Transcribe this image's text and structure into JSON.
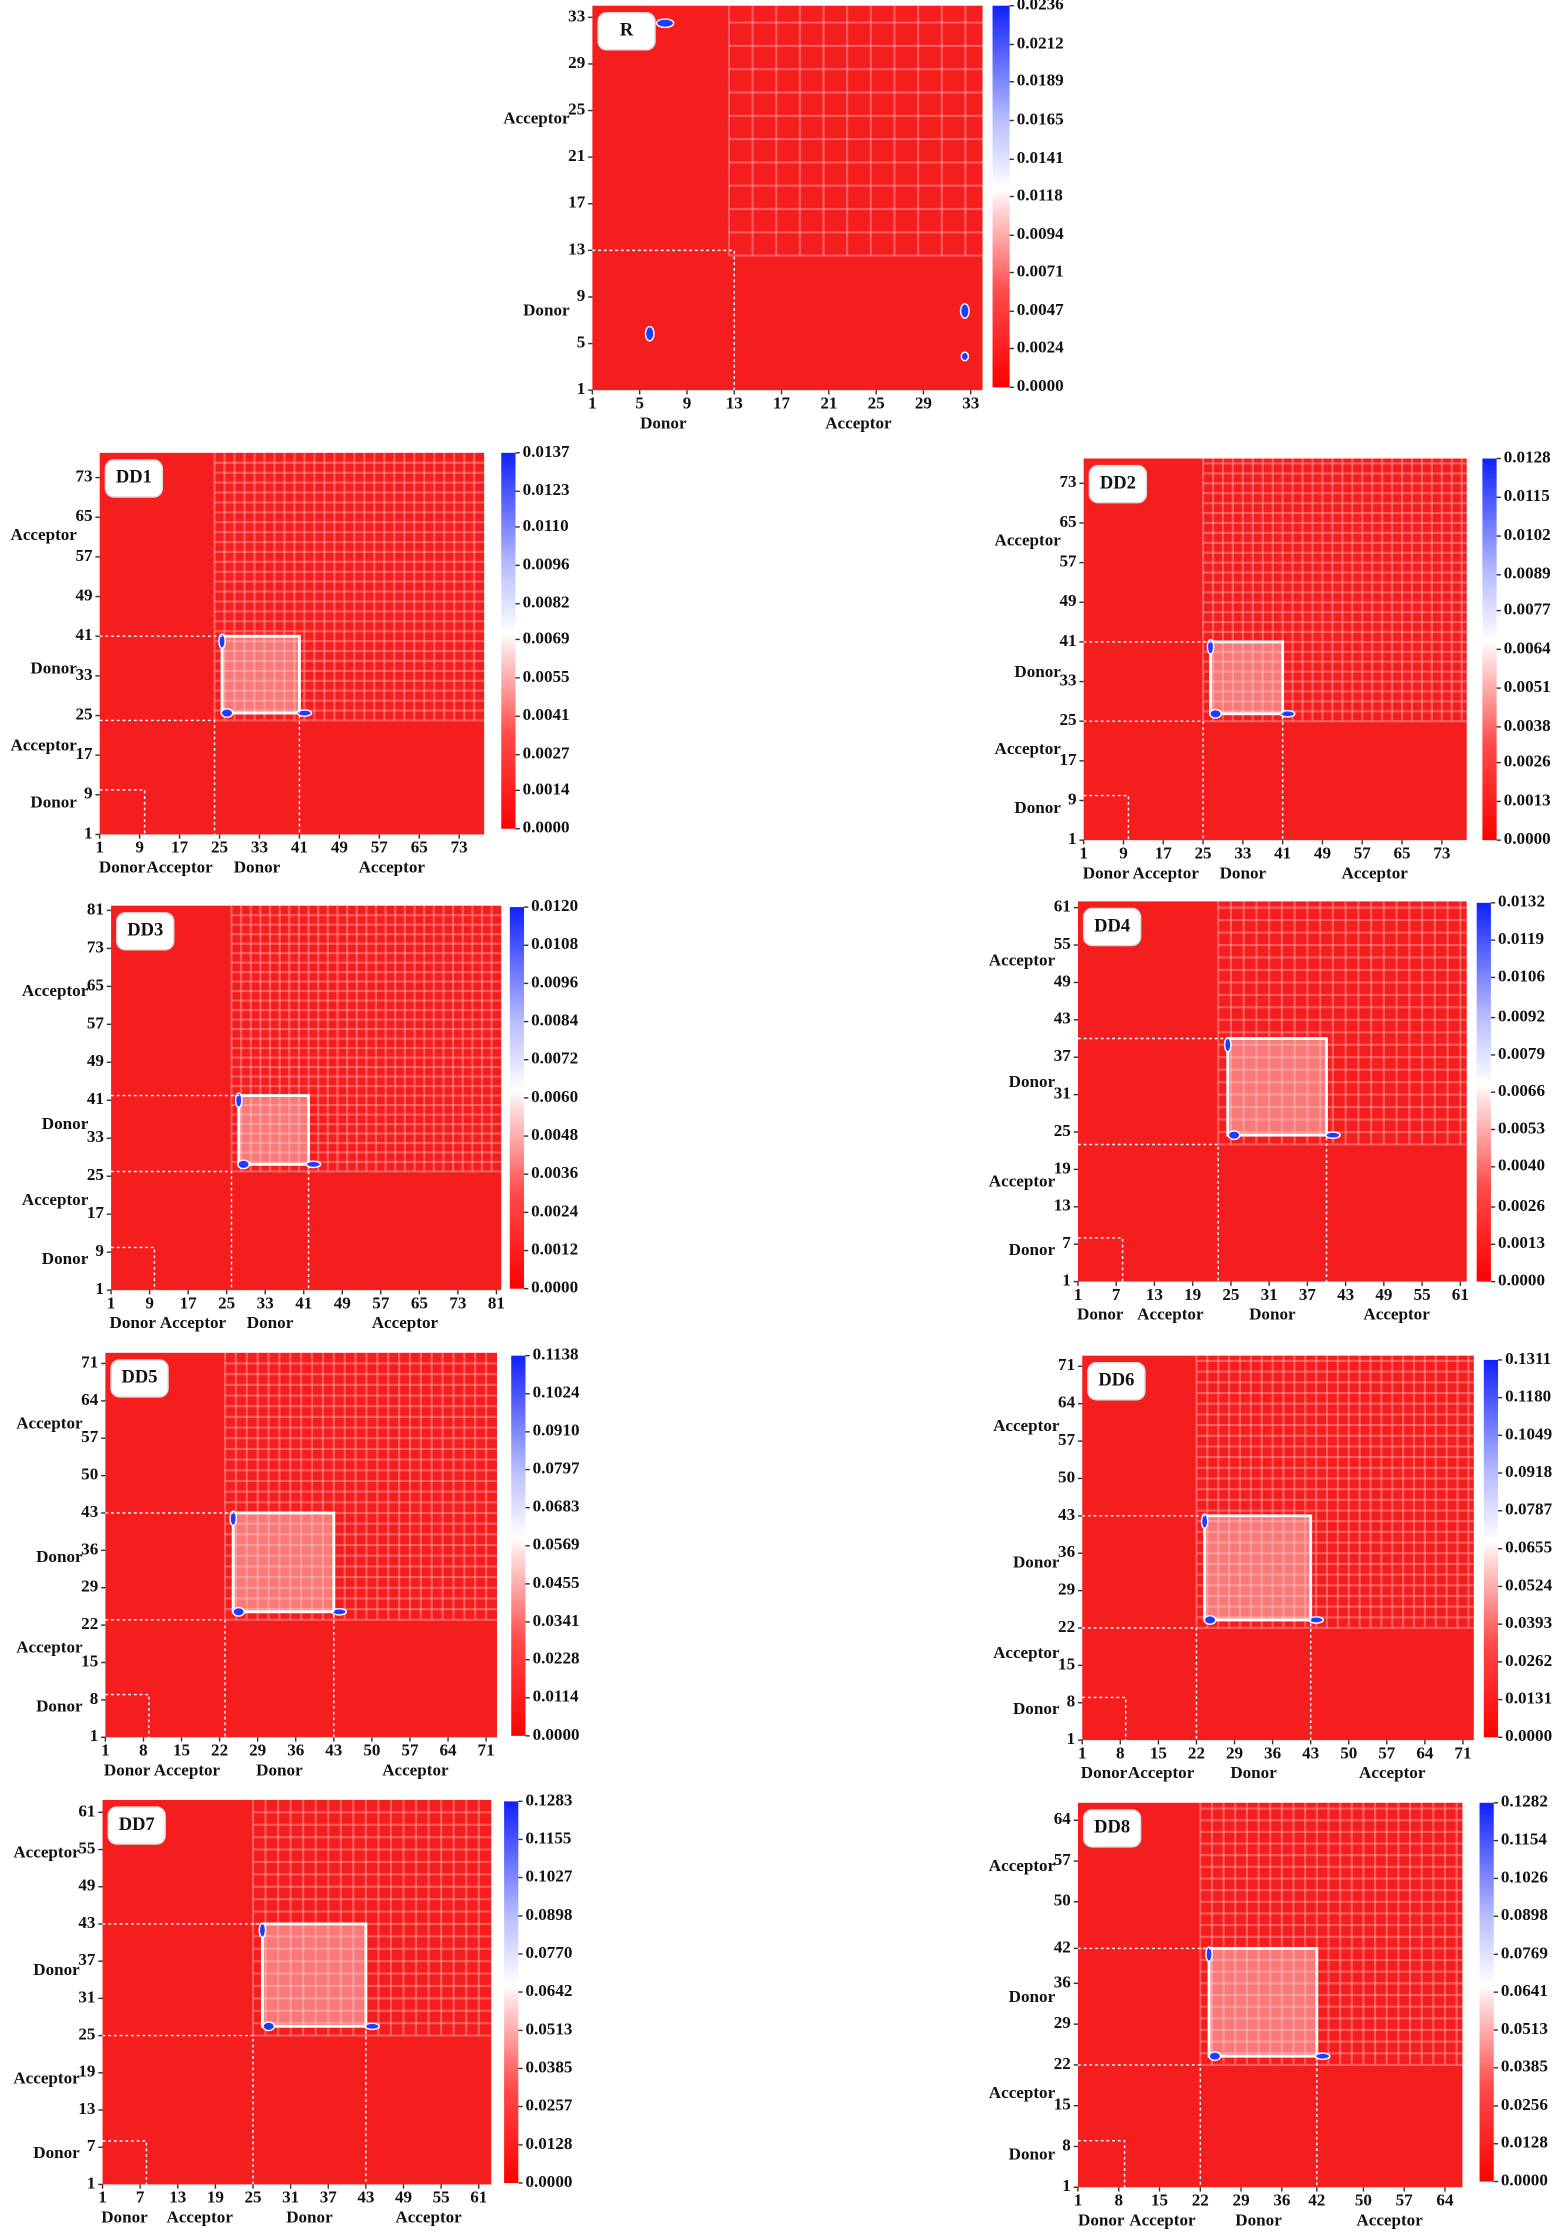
{
  "chart_data": [
    {
      "type": "heatmap",
      "title": "R",
      "xlim": [
        1,
        34
      ],
      "ylim": [
        1,
        34
      ],
      "xticks": [
        1,
        5,
        9,
        13,
        17,
        21,
        25,
        29,
        33
      ],
      "yticks": [
        1,
        5,
        9,
        13,
        17,
        21,
        25,
        29,
        33
      ],
      "regions": [
        {
          "label": "Donor",
          "end": 13
        },
        {
          "label": "Acceptor",
          "end": 34
        }
      ],
      "clim": [
        0,
        0.0236
      ],
      "cticks": [
        0.0236,
        0.0212,
        0.0189,
        0.0165,
        0.0141,
        0.0118,
        0.0094,
        0.0071,
        0.0047,
        0.0024,
        {
          "value": 0,
          "label": "0.0000"
        }
      ]
    },
    {
      "type": "heatmap",
      "title": "DD1",
      "xlim": [
        1,
        78
      ],
      "ylim": [
        1,
        78
      ],
      "xticks": [
        1,
        9,
        17,
        25,
        33,
        41,
        49,
        57,
        65,
        73
      ],
      "yticks": [
        1,
        9,
        17,
        25,
        33,
        41,
        49,
        57,
        65,
        73
      ],
      "regions": [
        {
          "label": "Donor",
          "end": 10
        },
        {
          "label": "Acceptor",
          "end": 24
        },
        {
          "label": "Donor",
          "end": 41
        },
        {
          "label": "Acceptor",
          "end": 78
        }
      ],
      "clim": [
        0,
        0.0137
      ],
      "cticks": [
        0.0137,
        0.0123,
        {
          "value": 0.011,
          "label": "0.0110"
        },
        0.0096,
        0.0082,
        0.0069,
        0.0055,
        0.0041,
        0.0027,
        0.0014,
        {
          "value": 0,
          "label": "0.0000"
        }
      ]
    },
    {
      "type": "heatmap",
      "title": "DD2",
      "xlim": [
        1,
        78
      ],
      "ylim": [
        1,
        78
      ],
      "xticks": [
        1,
        9,
        17,
        25,
        33,
        41,
        49,
        57,
        65,
        73
      ],
      "yticks": [
        1,
        9,
        17,
        25,
        33,
        41,
        49,
        57,
        65,
        73
      ],
      "regions": [
        {
          "label": "Donor",
          "end": 10
        },
        {
          "label": "Acceptor",
          "end": 25
        },
        {
          "label": "Donor",
          "end": 41
        },
        {
          "label": "Acceptor",
          "end": 78
        }
      ],
      "clim": [
        0,
        0.0128
      ],
      "cticks": [
        0.0128,
        0.0115,
        0.0102,
        0.0089,
        0.0077,
        0.0064,
        0.0051,
        0.0038,
        0.0026,
        0.0013,
        {
          "value": 0,
          "label": "0.0000"
        }
      ]
    },
    {
      "type": "heatmap",
      "title": "DD3",
      "xlim": [
        1,
        82
      ],
      "ylim": [
        1,
        82
      ],
      "xticks": [
        1,
        9,
        17,
        25,
        33,
        41,
        49,
        57,
        65,
        73,
        81
      ],
      "yticks": [
        1,
        9,
        17,
        25,
        33,
        41,
        49,
        57,
        65,
        73,
        81
      ],
      "regions": [
        {
          "label": "Donor",
          "end": 10
        },
        {
          "label": "Acceptor",
          "end": 26
        },
        {
          "label": "Donor",
          "end": 42
        },
        {
          "label": "Acceptor",
          "end": 82
        }
      ],
      "clim": [
        0,
        0.012
      ],
      "cticks": [
        {
          "value": 0.012,
          "label": "0.0120"
        },
        0.0108,
        0.0096,
        0.0084,
        0.0072,
        {
          "value": 0.006,
          "label": "0.0060"
        },
        0.0048,
        0.0036,
        0.0024,
        0.0012,
        {
          "value": 0,
          "label": "0.0000"
        }
      ]
    },
    {
      "type": "heatmap",
      "title": "DD4",
      "xlim": [
        1,
        62
      ],
      "ylim": [
        1,
        62
      ],
      "xticks": [
        1,
        7,
        13,
        19,
        25,
        31,
        37,
        43,
        49,
        55,
        61
      ],
      "yticks": [
        1,
        7,
        13,
        19,
        25,
        31,
        37,
        43,
        49,
        55,
        61
      ],
      "regions": [
        {
          "label": "Donor",
          "end": 8
        },
        {
          "label": "Acceptor",
          "end": 23
        },
        {
          "label": "Donor",
          "end": 40
        },
        {
          "label": "Acceptor",
          "end": 62
        }
      ],
      "clim": [
        0,
        0.0132
      ],
      "cticks": [
        0.0132,
        0.0119,
        0.0106,
        0.0092,
        0.0079,
        0.0066,
        0.0053,
        {
          "value": 0.004,
          "label": "0.0040"
        },
        0.0026,
        0.0013,
        {
          "value": 0,
          "label": "0.0000"
        }
      ]
    },
    {
      "type": "heatmap",
      "title": "DD5",
      "xlim": [
        1,
        73
      ],
      "ylim": [
        1,
        73
      ],
      "xticks": [
        1,
        8,
        15,
        22,
        29,
        36,
        43,
        50,
        57,
        64,
        71
      ],
      "yticks": [
        1,
        8,
        15,
        22,
        29,
        36,
        43,
        50,
        57,
        64,
        71
      ],
      "regions": [
        {
          "label": "Donor",
          "end": 9
        },
        {
          "label": "Acceptor",
          "end": 23
        },
        {
          "label": "Donor",
          "end": 43
        },
        {
          "label": "Acceptor",
          "end": 73
        }
      ],
      "clim": [
        0,
        0.1138
      ],
      "cticks": [
        0.1138,
        0.1024,
        {
          "value": 0.091,
          "label": "0.0910"
        },
        0.0797,
        0.0683,
        0.0569,
        0.0455,
        0.0341,
        0.0228,
        0.0114,
        {
          "value": 0,
          "label": "0.0000"
        }
      ]
    },
    {
      "type": "heatmap",
      "title": "DD6",
      "xlim": [
        1,
        73
      ],
      "ylim": [
        1,
        73
      ],
      "xticks": [
        1,
        8,
        15,
        22,
        29,
        36,
        43,
        50,
        57,
        64,
        71
      ],
      "yticks": [
        1,
        8,
        15,
        22,
        29,
        36,
        43,
        50,
        57,
        64,
        71
      ],
      "regions": [
        {
          "label": "Donor",
          "end": 9
        },
        {
          "label": "Acceptor",
          "end": 22
        },
        {
          "label": "Donor",
          "end": 43
        },
        {
          "label": "Acceptor",
          "end": 73
        }
      ],
      "clim": [
        0,
        0.1311
      ],
      "cticks": [
        0.1311,
        {
          "value": 0.118,
          "label": "0.1180"
        },
        0.1049,
        0.0918,
        0.0787,
        0.0655,
        0.0524,
        0.0393,
        0.0262,
        0.0131,
        {
          "value": 0,
          "label": "0.0000"
        }
      ]
    },
    {
      "type": "heatmap",
      "title": "DD7",
      "xlim": [
        1,
        63
      ],
      "ylim": [
        1,
        63
      ],
      "xticks": [
        1,
        7,
        13,
        19,
        25,
        31,
        37,
        43,
        49,
        55,
        61
      ],
      "yticks": [
        1,
        7,
        13,
        19,
        25,
        31,
        37,
        43,
        49,
        55,
        61
      ],
      "regions": [
        {
          "label": "Donor",
          "end": 8
        },
        {
          "label": "Acceptor",
          "end": 25
        },
        {
          "label": "Donor",
          "end": 43
        },
        {
          "label": "Acceptor",
          "end": 63
        }
      ],
      "clim": [
        0,
        0.1283
      ],
      "cticks": [
        0.1283,
        0.1155,
        0.1027,
        0.0898,
        {
          "value": 0.077,
          "label": "0.0770"
        },
        0.0642,
        0.0513,
        0.0385,
        0.0257,
        0.0128,
        {
          "value": 0,
          "label": "0.0000"
        }
      ]
    },
    {
      "type": "heatmap",
      "title": "DD8",
      "xlim": [
        1,
        67
      ],
      "ylim": [
        1,
        67
      ],
      "xticks": [
        1,
        8,
        15,
        22,
        29,
        36,
        42,
        50,
        57,
        64
      ],
      "yticks": [
        1,
        8,
        15,
        22,
        29,
        36,
        42,
        50,
        57,
        64
      ],
      "regions": [
        {
          "label": "Donor",
          "end": 9
        },
        {
          "label": "Acceptor",
          "end": 22
        },
        {
          "label": "Donor",
          "end": 42
        },
        {
          "label": "Acceptor",
          "end": 67
        }
      ],
      "clim": [
        0,
        0.1282
      ],
      "cticks": [
        0.1282,
        0.1154,
        0.1026,
        0.0898,
        0.0769,
        0.0641,
        0.0513,
        0.0385,
        0.0256,
        0.0128,
        {
          "value": 0,
          "label": "0.0000"
        }
      ]
    }
  ]
}
